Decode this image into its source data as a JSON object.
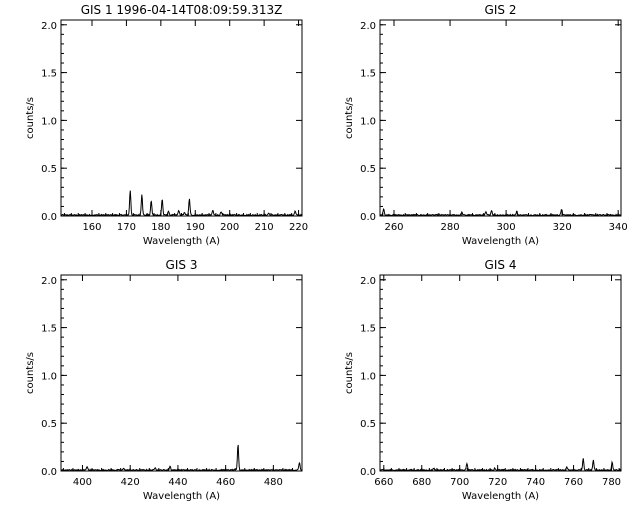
{
  "chart_data": [
    {
      "type": "line",
      "title": "GIS 1 1996-04-14T08:09:59.313Z",
      "xlabel": "Wavelength (A)",
      "ylabel": "counts/s",
      "xlim": [
        151,
        221
      ],
      "ylim": [
        0,
        2.05
      ],
      "xticks": [
        160,
        170,
        180,
        190,
        200,
        210,
        220
      ],
      "yticks": [
        0.0,
        0.5,
        1.0,
        1.5,
        2.0
      ],
      "ytick_labels": [
        "0.0",
        "0.5",
        "1.0",
        "1.5",
        "2.0"
      ],
      "series": [
        {
          "baseline": 0.01,
          "peaks": [
            [
              171.1,
              0.26
            ],
            [
              174.5,
              0.22
            ],
            [
              177.2,
              0.15
            ],
            [
              180.4,
              0.17
            ],
            [
              182.2,
              0.04
            ],
            [
              185.2,
              0.05
            ],
            [
              186.9,
              0.03
            ],
            [
              188.3,
              0.17
            ],
            [
              195.1,
              0.05
            ],
            [
              197.5,
              0.03
            ],
            [
              211.3,
              0.02
            ],
            [
              219.0,
              0.04
            ]
          ]
        }
      ]
    },
    {
      "type": "line",
      "title": "GIS 2",
      "xlabel": "Wavelength (A)",
      "ylabel": "counts/s",
      "xlim": [
        255,
        341
      ],
      "ylim": [
        0,
        2.05
      ],
      "xticks": [
        260,
        280,
        300,
        320,
        340
      ],
      "yticks": [
        0.0,
        0.5,
        1.0,
        1.5,
        2.0
      ],
      "ytick_labels": [
        "0.0",
        "0.5",
        "1.0",
        "1.5",
        "2.0"
      ],
      "series": [
        {
          "baseline": 0.01,
          "peaks": [
            [
              256.3,
              0.07
            ],
            [
              284.2,
              0.03
            ],
            [
              292.8,
              0.03
            ],
            [
              294.8,
              0.05
            ],
            [
              303.8,
              0.04
            ],
            [
              319.8,
              0.06
            ]
          ]
        }
      ]
    },
    {
      "type": "line",
      "title": "GIS 3",
      "xlabel": "Wavelength (A)",
      "ylabel": "counts/s",
      "xlim": [
        391,
        492
      ],
      "ylim": [
        0,
        2.05
      ],
      "xticks": [
        400,
        420,
        440,
        460,
        480
      ],
      "yticks": [
        0.0,
        0.5,
        1.0,
        1.5,
        2.0
      ],
      "ytick_labels": [
        "0.0",
        "0.5",
        "1.0",
        "1.5",
        "2.0"
      ],
      "series": [
        {
          "baseline": 0.01,
          "peaks": [
            [
              401.9,
              0.04
            ],
            [
              417.3,
              0.02
            ],
            [
              430.5,
              0.03
            ],
            [
              436.7,
              0.04
            ],
            [
              465.2,
              0.27
            ],
            [
              490.9,
              0.08
            ]
          ]
        }
      ]
    },
    {
      "type": "line",
      "title": "GIS 4",
      "xlabel": "Wavelength (A)",
      "ylabel": "counts/s",
      "xlim": [
        658,
        785
      ],
      "ylim": [
        0,
        2.05
      ],
      "xticks": [
        660,
        680,
        700,
        720,
        740,
        760,
        780
      ],
      "yticks": [
        0.0,
        0.5,
        1.0,
        1.5,
        2.0
      ],
      "ytick_labels": [
        "0.0",
        "0.5",
        "1.0",
        "1.5",
        "2.0"
      ],
      "series": [
        {
          "baseline": 0.01,
          "peaks": [
            [
              686.3,
              0.02
            ],
            [
              703.8,
              0.07
            ],
            [
              718.5,
              0.02
            ],
            [
              756.5,
              0.03
            ],
            [
              765.1,
              0.12
            ],
            [
              770.4,
              0.1
            ],
            [
              780.3,
              0.08
            ]
          ]
        }
      ]
    }
  ]
}
